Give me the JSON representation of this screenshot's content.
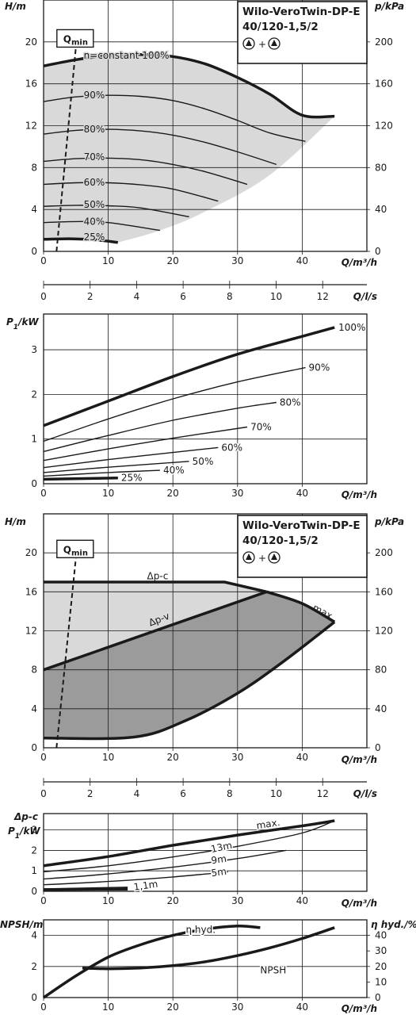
{
  "title": {
    "line1": "Wilo-VeroTwin-DP-E",
    "line2": "40/120-1,5/2",
    "plus": "+"
  },
  "colors": {
    "ink": "#1a1a1a",
    "light_fill": "#d9d9d9",
    "dark_fill": "#9b9b9b",
    "plate_fill": "#dcdcdc"
  },
  "chart_data": [
    {
      "id": "hq",
      "type": "line",
      "xlabel": "Q/m³/h",
      "ylabel": "H/m",
      "ylabel_right": "p/kPa",
      "xlim": [
        0,
        50
      ],
      "ylim": [
        0,
        24
      ],
      "xticks": [
        0,
        10,
        20,
        30,
        40
      ],
      "yticks": [
        0,
        4,
        8,
        12,
        16,
        20
      ],
      "yticks_right": [
        0,
        40,
        80,
        120,
        160,
        200
      ],
      "qmin_label": "Q",
      "qmin_sub": "min",
      "qmin_line": [
        [
          2.0,
          0
        ],
        [
          5.0,
          19.5
        ]
      ],
      "shaded_region": "between 100% curve and 25% curve up to the maximum speed end line",
      "series": [
        {
          "name": "n=constant 100%",
          "width": "thick",
          "x": [
            0,
            5,
            10,
            15,
            20,
            25,
            30,
            35,
            40,
            45
          ],
          "y": [
            17.7,
            18.3,
            18.7,
            18.8,
            18.6,
            17.9,
            16.6,
            15.0,
            13.0,
            12.9
          ]
        },
        {
          "name": "90%",
          "width": "thin",
          "x": [
            0,
            5,
            10,
            15,
            20,
            25,
            30,
            35,
            40.5
          ],
          "y": [
            14.3,
            14.75,
            14.9,
            14.8,
            14.4,
            13.6,
            12.5,
            11.3,
            10.5
          ]
        },
        {
          "name": "80%",
          "width": "thin",
          "x": [
            0,
            5,
            10,
            15,
            20,
            25,
            30,
            36
          ],
          "y": [
            11.2,
            11.55,
            11.65,
            11.5,
            11.1,
            10.4,
            9.5,
            8.3
          ]
        },
        {
          "name": "70%",
          "width": "thin",
          "x": [
            0,
            5,
            10,
            15,
            20,
            25,
            31.5
          ],
          "y": [
            8.6,
            8.85,
            8.9,
            8.75,
            8.3,
            7.6,
            6.4
          ]
        },
        {
          "name": "60%",
          "width": "thin",
          "x": [
            0,
            5,
            10,
            15,
            20,
            27
          ],
          "y": [
            6.4,
            6.55,
            6.55,
            6.35,
            5.95,
            4.8
          ]
        },
        {
          "name": "50%",
          "width": "thin",
          "x": [
            0,
            5,
            10,
            15,
            22.5
          ],
          "y": [
            4.3,
            4.4,
            4.35,
            4.15,
            3.3
          ]
        },
        {
          "name": "40%",
          "width": "thin",
          "x": [
            0,
            5,
            10,
            18
          ],
          "y": [
            2.75,
            2.85,
            2.75,
            2.0
          ]
        },
        {
          "name": "25%",
          "width": "thick",
          "x": [
            0,
            4,
            8,
            11.5
          ],
          "y": [
            1.15,
            1.2,
            1.1,
            0.85
          ]
        }
      ],
      "labels": [
        {
          "text": "n=constant 100%",
          "x": 6.2,
          "y": 18.7
        },
        {
          "text": "90%",
          "x": 6.2,
          "y": 14.9
        },
        {
          "text": "80%",
          "x": 6.2,
          "y": 11.65
        },
        {
          "text": "70%",
          "x": 6.2,
          "y": 9.0
        },
        {
          "text": "60%",
          "x": 6.2,
          "y": 6.6
        },
        {
          "text": "50%",
          "x": 6.2,
          "y": 4.45
        },
        {
          "text": "40%",
          "x": 6.2,
          "y": 2.85
        },
        {
          "text": "25%",
          "x": 6.2,
          "y": 1.35
        }
      ]
    },
    {
      "id": "flow_ls_axis",
      "type": "axis",
      "xlabel": "Q/l/s",
      "xlim": [
        0,
        13.9
      ],
      "xticks": [
        0,
        2,
        4,
        6,
        8,
        10,
        12
      ]
    },
    {
      "id": "power",
      "type": "line",
      "xlabel": "Q/m³/h",
      "ylabel": "P1/kW",
      "xlim": [
        0,
        50
      ],
      "ylim": [
        0,
        3.8
      ],
      "xticks": [
        0,
        10,
        20,
        30,
        40
      ],
      "yticks": [
        0,
        1,
        2,
        3
      ],
      "series": [
        {
          "name": "100%",
          "width": "thick",
          "x": [
            0,
            10,
            20,
            30,
            40,
            45
          ],
          "y": [
            1.3,
            1.85,
            2.4,
            2.9,
            3.3,
            3.5
          ]
        },
        {
          "name": "90%",
          "width": "thin",
          "x": [
            0,
            10,
            20,
            30,
            40.5
          ],
          "y": [
            0.95,
            1.45,
            1.9,
            2.28,
            2.6
          ]
        },
        {
          "name": "80%",
          "width": "thin",
          "x": [
            0,
            10,
            20,
            30,
            36
          ],
          "y": [
            0.72,
            1.08,
            1.42,
            1.69,
            1.82
          ]
        },
        {
          "name": "70%",
          "width": "thin",
          "x": [
            0,
            10,
            20,
            31.5
          ],
          "y": [
            0.52,
            0.78,
            1.02,
            1.27
          ]
        },
        {
          "name": "60%",
          "width": "thin",
          "x": [
            0,
            10,
            20,
            27
          ],
          "y": [
            0.36,
            0.54,
            0.7,
            0.81
          ]
        },
        {
          "name": "50%",
          "width": "thin",
          "x": [
            0,
            10,
            22.5
          ],
          "y": [
            0.25,
            0.37,
            0.5
          ]
        },
        {
          "name": "40%",
          "width": "thin",
          "x": [
            0,
            10,
            18
          ],
          "y": [
            0.17,
            0.25,
            0.3
          ]
        },
        {
          "name": "25%",
          "width": "thick",
          "x": [
            0,
            11.5
          ],
          "y": [
            0.1,
            0.13
          ]
        }
      ],
      "labels": [
        {
          "text": "100%",
          "x": 45.6,
          "y": 3.5
        },
        {
          "text": "90%",
          "x": 41.0,
          "y": 2.6
        },
        {
          "text": "80%",
          "x": 36.5,
          "y": 1.82
        },
        {
          "text": "70%",
          "x": 32.0,
          "y": 1.27
        },
        {
          "text": "60%",
          "x": 27.5,
          "y": 0.81
        },
        {
          "text": "50%",
          "x": 23.0,
          "y": 0.5
        },
        {
          "text": "40%",
          "x": 18.5,
          "y": 0.3
        },
        {
          "text": "25%",
          "x": 12.0,
          "y": 0.13
        }
      ]
    },
    {
      "id": "hq_dp",
      "type": "area",
      "xlabel": "Q/m³/h",
      "ylabel": "H/m",
      "ylabel_right": "p/kPa",
      "xlim": [
        0,
        50
      ],
      "ylim": [
        0,
        24
      ],
      "xticks": [
        0,
        10,
        20,
        30,
        40
      ],
      "yticks": [
        0,
        4,
        8,
        12,
        16,
        20
      ],
      "yticks_right": [
        0,
        40,
        80,
        120,
        160,
        200
      ],
      "qmin_label": "Q",
      "qmin_sub": "min",
      "qmin_line": [
        [
          2.0,
          0
        ],
        [
          5.0,
          19.5
        ]
      ],
      "dp_c": {
        "label": "Δp-c",
        "x": [
          0,
          28,
          34.5
        ],
        "y": [
          17.0,
          17.0,
          16.0
        ]
      },
      "dp_v": {
        "label": "Δp-v",
        "x": [
          0,
          34.5
        ],
        "y": [
          8.0,
          16.0
        ]
      },
      "max_curve": {
        "label": "max.",
        "x": [
          34.5,
          40,
          45
        ],
        "y": [
          16.0,
          14.8,
          12.9
        ]
      },
      "lower_boundary": {
        "x": [
          0,
          14,
          22,
          30,
          37,
          45
        ],
        "y": [
          1.0,
          1.1,
          2.8,
          5.6,
          8.8,
          12.9
        ]
      },
      "labels": [
        {
          "text": "Δp-c",
          "x": 16.0,
          "y": 17.6
        },
        {
          "text": "Δp-v",
          "x": 16.5,
          "y": 12.8
        },
        {
          "text": "max.",
          "x": 41.5,
          "y": 14.5
        }
      ]
    },
    {
      "id": "flow_ls_axis_2",
      "type": "axis",
      "xlabel": "Q/l/s",
      "xlim": [
        0,
        13.9
      ],
      "xticks": [
        0,
        2,
        4,
        6,
        8,
        10,
        12
      ]
    },
    {
      "id": "power_dp",
      "type": "line",
      "xlabel": "Q/m³/h",
      "ylabel_top": "Δp-c",
      "ylabel": "P1/kW",
      "xlim": [
        0,
        50
      ],
      "ylim": [
        0,
        3.8
      ],
      "xticks": [
        0,
        10,
        20,
        30,
        40
      ],
      "yticks": [
        0,
        1,
        2,
        3
      ],
      "series": [
        {
          "name": "max.",
          "width": "thick",
          "x": [
            0,
            10,
            20,
            30,
            40,
            45
          ],
          "y": [
            1.25,
            1.7,
            2.25,
            2.75,
            3.2,
            3.45
          ]
        },
        {
          "name": "13m",
          "width": "thin",
          "x": [
            0,
            10,
            20,
            30,
            40,
            45
          ],
          "y": [
            0.95,
            1.25,
            1.68,
            2.2,
            2.85,
            3.45
          ]
        },
        {
          "name": "9m",
          "width": "thin",
          "x": [
            0,
            10,
            20,
            30,
            37.5
          ],
          "y": [
            0.6,
            0.85,
            1.18,
            1.6,
            2.0
          ]
        },
        {
          "name": "5m",
          "width": "thin",
          "x": [
            0,
            10,
            20,
            28.5
          ],
          "y": [
            0.32,
            0.48,
            0.7,
            0.95
          ]
        },
        {
          "name": "1,1m",
          "width": "thin",
          "x": [
            0,
            13
          ],
          "y": [
            0.12,
            0.2
          ]
        },
        {
          "name": "",
          "width": "thick",
          "x": [
            0,
            13
          ],
          "y": [
            0.08,
            0.11
          ]
        }
      ],
      "labels": [
        {
          "text": "max.",
          "x": 33.0,
          "y": 3.2
        },
        {
          "text": "13m",
          "x": 26.0,
          "y": 2.05
        },
        {
          "text": "9m",
          "x": 26.0,
          "y": 1.5
        },
        {
          "text": "5m",
          "x": 26.0,
          "y": 0.88
        },
        {
          "text": "1,1m",
          "x": 14.0,
          "y": 0.2
        }
      ]
    },
    {
      "id": "npsh",
      "type": "line",
      "xlabel": "Q/m³/h",
      "ylabel": "NPSH/m",
      "ylabel_right": "η hyd./%",
      "xlim": [
        0,
        50
      ],
      "ylim": [
        0,
        5
      ],
      "ylim_right": [
        0,
        50
      ],
      "xticks": [
        0,
        10,
        20,
        30,
        40
      ],
      "yticks": [
        0,
        2,
        4
      ],
      "yticks_right": [
        0,
        10,
        20,
        30,
        40
      ],
      "series": [
        {
          "name": "η hyd.",
          "axis": "right",
          "width": "thick",
          "x": [
            0,
            5,
            10,
            15,
            20,
            25,
            30,
            33.5
          ],
          "y": [
            0,
            14,
            26,
            34,
            40,
            44,
            46,
            45
          ]
        },
        {
          "name": "NPSH",
          "axis": "left",
          "width": "thick",
          "x": [
            6,
            10,
            15,
            20,
            25,
            30,
            35,
            40,
            45
          ],
          "y": [
            1.9,
            1.85,
            1.9,
            2.05,
            2.3,
            2.7,
            3.2,
            3.8,
            4.5
          ]
        }
      ],
      "labels": [
        {
          "text": "η hyd.",
          "x": 22.0,
          "y": 4.35
        },
        {
          "text": "NPSH",
          "x": 33.5,
          "y": 1.75
        }
      ]
    }
  ]
}
